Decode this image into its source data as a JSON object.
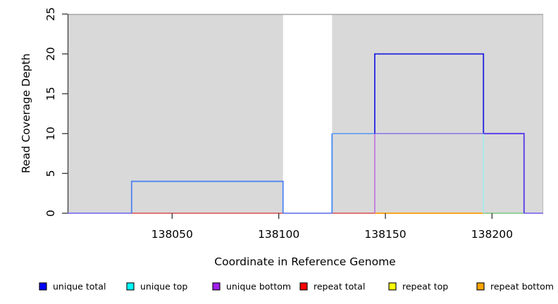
{
  "chart_data": {
    "type": "line",
    "subtype": "step-coverage",
    "title": "",
    "xlabel": "Coordinate in Reference Genome",
    "ylabel": "Read Coverage Depth",
    "xlim": [
      138001,
      138224
    ],
    "ylim": [
      0,
      25
    ],
    "x_ticks": [
      138050,
      138100,
      138150,
      138200
    ],
    "y_ticks": [
      0,
      5,
      10,
      15,
      20,
      25
    ],
    "grid": false,
    "legend_position": "bottom",
    "plot_bg": "#d9d9d9",
    "masked_region": {
      "x0": 138102,
      "x1": 138125,
      "color": "#ffffff"
    },
    "series": [
      {
        "name": "unique total",
        "color": "#0000ff",
        "step_points": [
          [
            138001,
            0
          ],
          [
            138031,
            0
          ],
          [
            138031,
            4
          ],
          [
            138102,
            4
          ],
          [
            138102,
            0
          ],
          [
            138125,
            0
          ],
          [
            138125,
            10
          ],
          [
            138145,
            10
          ],
          [
            138145,
            20
          ],
          [
            138196,
            20
          ],
          [
            138196,
            10
          ],
          [
            138215,
            10
          ],
          [
            138215,
            0
          ],
          [
            138224,
            0
          ]
        ]
      },
      {
        "name": "unique top",
        "color": "#00ffff",
        "step_points": [
          [
            138001,
            0
          ],
          [
            138031,
            0
          ],
          [
            138031,
            4
          ],
          [
            138102,
            4
          ],
          [
            138102,
            0
          ],
          [
            138125,
            0
          ],
          [
            138125,
            10
          ],
          [
            138196,
            10
          ],
          [
            138196,
            0
          ],
          [
            138224,
            0
          ]
        ]
      },
      {
        "name": "unique bottom",
        "color": "#a020f0",
        "step_points": [
          [
            138001,
            0
          ],
          [
            138145,
            0
          ],
          [
            138145,
            10
          ],
          [
            138215,
            10
          ],
          [
            138215,
            0
          ],
          [
            138224,
            0
          ]
        ]
      },
      {
        "name": "repeat total",
        "color": "#ff0000",
        "step_points": [
          [
            138001,
            0
          ],
          [
            138224,
            0
          ]
        ]
      },
      {
        "name": "repeat top",
        "color": "#ffff00",
        "step_points": [
          [
            138001,
            0
          ],
          [
            138224,
            0
          ]
        ]
      },
      {
        "name": "repeat bottom",
        "color": "#ffa500",
        "step_points": [
          [
            138001,
            0
          ],
          [
            138224,
            0
          ]
        ]
      }
    ],
    "rendered_strokes": [
      {
        "name": "baseline-left",
        "color": "#6a60f0",
        "w": 1.6,
        "pts": [
          [
            138001,
            0
          ],
          [
            138031,
            0
          ]
        ]
      },
      {
        "name": "baseline-under-depth4",
        "color": "#dc4f55",
        "w": 1.5,
        "pts": [
          [
            138031,
            0
          ],
          [
            138102,
            0
          ]
        ]
      },
      {
        "name": "baseline-gap",
        "color": "#5a68f0",
        "w": 1.6,
        "pts": [
          [
            138102,
            0
          ],
          [
            138125,
            0
          ]
        ]
      },
      {
        "name": "baseline-mid",
        "color": "#dc4f55",
        "w": 1.5,
        "pts": [
          [
            138125,
            0
          ],
          [
            138145,
            0
          ]
        ]
      },
      {
        "name": "baseline-orange",
        "color": "#ff9d00",
        "w": 1.8,
        "pts": [
          [
            138145,
            0
          ],
          [
            138196,
            0
          ]
        ]
      },
      {
        "name": "baseline-green",
        "color": "#7cc77f",
        "w": 1.6,
        "pts": [
          [
            138196,
            0
          ],
          [
            138215,
            0
          ]
        ]
      },
      {
        "name": "baseline-right",
        "color": "#7058f0",
        "w": 1.6,
        "pts": [
          [
            138215,
            0
          ],
          [
            138224,
            0
          ]
        ]
      },
      {
        "name": "depth4-box",
        "color": "#4f83ef",
        "w": 1.8,
        "pts": [
          [
            138031,
            0
          ],
          [
            138031,
            4
          ],
          [
            138102,
            4
          ],
          [
            138102,
            0
          ]
        ]
      },
      {
        "name": "step10-up-left",
        "color": "#4489f2",
        "w": 1.8,
        "pts": [
          [
            138125,
            0
          ],
          [
            138125,
            10
          ]
        ]
      },
      {
        "name": "depth10-left-top",
        "color": "#5e9af2",
        "w": 1.7,
        "pts": [
          [
            138125,
            10
          ],
          [
            138145,
            10
          ]
        ]
      },
      {
        "name": "bottom-step-up",
        "color": "#bd66dc",
        "w": 1.5,
        "pts": [
          [
            138145,
            0
          ],
          [
            138145,
            10
          ]
        ]
      },
      {
        "name": "bottom-depth10-top",
        "color": "#8b72e8",
        "w": 1.5,
        "pts": [
          [
            138145,
            10
          ],
          [
            138196,
            10
          ]
        ]
      },
      {
        "name": "depth20-box",
        "color": "#2121e0",
        "w": 1.8,
        "pts": [
          [
            138145,
            10
          ],
          [
            138145,
            20
          ],
          [
            138196,
            20
          ],
          [
            138196,
            10
          ]
        ]
      },
      {
        "name": "top-step-down",
        "color": "#a5eaec",
        "w": 1.8,
        "pts": [
          [
            138196,
            10
          ],
          [
            138196,
            0
          ]
        ]
      },
      {
        "name": "depth10-right",
        "color": "#5438ea",
        "w": 1.8,
        "pts": [
          [
            138196,
            10
          ],
          [
            138215,
            10
          ],
          [
            138215,
            0
          ]
        ]
      }
    ],
    "legend": [
      {
        "label": "unique total",
        "color": "#0000ff"
      },
      {
        "label": "unique top",
        "color": "#00ffff"
      },
      {
        "label": "unique bottom",
        "color": "#a020f0"
      },
      {
        "label": "repeat total",
        "color": "#ff0000"
      },
      {
        "label": "repeat top",
        "color": "#ffff00"
      },
      {
        "label": "repeat bottom",
        "color": "#ffa500"
      }
    ],
    "frame_colors": {
      "top": "#a6a6a6",
      "left": "#3f3f3f",
      "right": "#bcbcbc",
      "tick": "#333333"
    }
  }
}
